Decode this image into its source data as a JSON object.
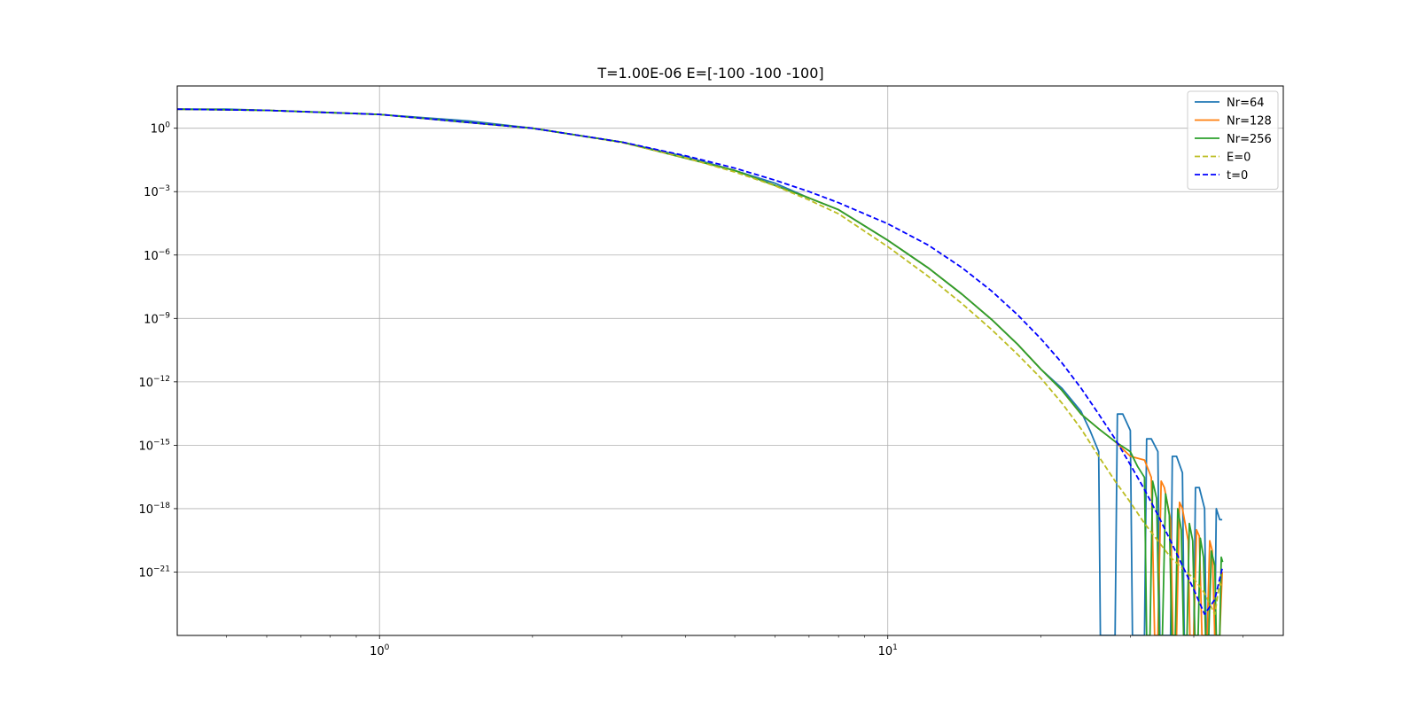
{
  "chart_data": {
    "type": "line",
    "title": "T=1.00E-06 E=[-100 -100 -100]",
    "xlabel": "",
    "ylabel": "",
    "xscale": "log",
    "yscale": "log",
    "xlim": [
      0.4,
      60
    ],
    "ylim": [
      1e-24,
      100.0
    ],
    "grid": true,
    "legend_position": "top-right",
    "x_ticks": [
      {
        "value": 1,
        "base": "10",
        "exp": "0"
      },
      {
        "value": 10,
        "base": "10",
        "exp": "1"
      }
    ],
    "y_ticks": [
      {
        "value": 1,
        "base": "10",
        "exp": "0"
      },
      {
        "value": 0.001,
        "base": "10",
        "exp": "−3"
      },
      {
        "value": 1e-06,
        "base": "10",
        "exp": "−6"
      },
      {
        "value": 1e-09,
        "base": "10",
        "exp": "−9"
      },
      {
        "value": 1e-12,
        "base": "10",
        "exp": "−12"
      },
      {
        "value": 1e-15,
        "base": "10",
        "exp": "−15"
      },
      {
        "value": 1e-18,
        "base": "10",
        "exp": "−18"
      },
      {
        "value": 1e-21,
        "base": "10",
        "exp": "−21"
      }
    ],
    "series": [
      {
        "name": "Nr=64",
        "color": "#1f77b4",
        "dash": false,
        "points": [
          [
            0.4,
            8
          ],
          [
            0.5,
            8
          ],
          [
            0.6,
            7
          ],
          [
            0.8,
            5.5
          ],
          [
            1,
            4.5
          ],
          [
            1.5,
            2.2
          ],
          [
            2,
            1
          ],
          [
            3,
            0.22
          ],
          [
            4,
            0.045
          ],
          [
            5,
            0.01
          ],
          [
            6,
            0.0025
          ],
          [
            7,
            0.0005
          ],
          [
            8,
            0.00014
          ],
          [
            10,
            5e-06
          ],
          [
            12,
            2.5e-07
          ],
          [
            14,
            1.4e-08
          ],
          [
            16,
            9e-10
          ],
          [
            18,
            6e-11
          ],
          [
            20,
            4e-12
          ],
          [
            22,
            5e-13
          ],
          [
            24,
            4e-14
          ],
          [
            25,
            5e-15
          ],
          [
            26,
            5e-16
          ],
          [
            26.2,
            1e-24
          ],
          [
            28,
            1e-24
          ],
          [
            28.3,
            3e-14
          ],
          [
            29,
            3e-14
          ],
          [
            30,
            5e-15
          ],
          [
            30.3,
            1e-24
          ],
          [
            32,
            1e-24
          ],
          [
            32.3,
            2e-15
          ],
          [
            33,
            2e-15
          ],
          [
            34,
            5e-16
          ],
          [
            34.3,
            1e-24
          ],
          [
            36,
            1e-24
          ],
          [
            36.3,
            3e-16
          ],
          [
            37,
            3e-16
          ],
          [
            38,
            5e-17
          ],
          [
            38.3,
            1e-24
          ],
          [
            40,
            1e-24
          ],
          [
            40.3,
            1e-17
          ],
          [
            41,
            1e-17
          ],
          [
            42,
            1e-18
          ],
          [
            42.3,
            1e-24
          ],
          [
            44,
            1e-24
          ],
          [
            44.3,
            1e-18
          ],
          [
            45,
            3e-19
          ],
          [
            45.5,
            3e-19
          ]
        ]
      },
      {
        "name": "Nr=128",
        "color": "#ff7f0e",
        "dash": false,
        "points": [
          [
            0.4,
            8
          ],
          [
            0.6,
            7
          ],
          [
            1,
            4.5
          ],
          [
            2,
            1
          ],
          [
            3,
            0.22
          ],
          [
            5,
            0.01
          ],
          [
            7,
            0.0005
          ],
          [
            8,
            0.00014
          ],
          [
            10,
            5e-06
          ],
          [
            12,
            2.5e-07
          ],
          [
            14,
            1.4e-08
          ],
          [
            16,
            9e-10
          ],
          [
            18,
            6e-11
          ],
          [
            20,
            4e-12
          ],
          [
            22,
            4e-13
          ],
          [
            24,
            3e-14
          ],
          [
            26,
            6e-15
          ],
          [
            28,
            1.5e-15
          ],
          [
            30,
            3e-16
          ],
          [
            32,
            2e-16
          ],
          [
            33,
            3e-17
          ],
          [
            33.5,
            1e-24
          ],
          [
            34,
            1e-24
          ],
          [
            34.5,
            2e-17
          ],
          [
            35,
            1e-17
          ],
          [
            36,
            3e-19
          ],
          [
            36.4,
            1e-24
          ],
          [
            37,
            1e-24
          ],
          [
            37.5,
            2e-18
          ],
          [
            38,
            1e-18
          ],
          [
            39,
            3e-20
          ],
          [
            39.3,
            1e-24
          ],
          [
            40,
            1e-24
          ],
          [
            40.5,
            1e-19
          ],
          [
            41,
            5e-20
          ],
          [
            41.5,
            1e-24
          ],
          [
            42.5,
            1e-24
          ],
          [
            43,
            3e-20
          ],
          [
            43.5,
            1e-20
          ],
          [
            44,
            1e-24
          ],
          [
            45,
            1e-24
          ],
          [
            45.5,
            1e-21
          ]
        ]
      },
      {
        "name": "Nr=256",
        "color": "#2ca02c",
        "dash": false,
        "points": [
          [
            0.4,
            8
          ],
          [
            0.6,
            7
          ],
          [
            1,
            4.5
          ],
          [
            2,
            1
          ],
          [
            3,
            0.22
          ],
          [
            5,
            0.01
          ],
          [
            7,
            0.0005
          ],
          [
            8,
            0.00014
          ],
          [
            10,
            5e-06
          ],
          [
            12,
            2.5e-07
          ],
          [
            14,
            1.4e-08
          ],
          [
            16,
            9e-10
          ],
          [
            18,
            6e-11
          ],
          [
            20,
            4e-12
          ],
          [
            22,
            4e-13
          ],
          [
            24,
            3e-14
          ],
          [
            26,
            6e-15
          ],
          [
            28,
            1.5e-15
          ],
          [
            30,
            5e-16
          ],
          [
            31,
            1e-16
          ],
          [
            32,
            3e-17
          ],
          [
            32.3,
            1e-24
          ],
          [
            32.8,
            1e-24
          ],
          [
            33.2,
            2e-17
          ],
          [
            33.8,
            3e-18
          ],
          [
            34.2,
            1e-24
          ],
          [
            34.7,
            1e-24
          ],
          [
            35.2,
            5e-18
          ],
          [
            35.8,
            5e-19
          ],
          [
            36.2,
            1e-24
          ],
          [
            36.8,
            1e-24
          ],
          [
            37.2,
            1e-18
          ],
          [
            37.8,
            1e-19
          ],
          [
            38.2,
            1e-24
          ],
          [
            38.8,
            1e-24
          ],
          [
            39.2,
            2e-19
          ],
          [
            39.8,
            3e-20
          ],
          [
            40.2,
            1e-24
          ],
          [
            40.8,
            1e-24
          ],
          [
            41.2,
            4e-20
          ],
          [
            41.8,
            5e-21
          ],
          [
            42.2,
            1e-24
          ],
          [
            42.8,
            1e-24
          ],
          [
            43.3,
            1e-20
          ],
          [
            44,
            2e-21
          ],
          [
            44.3,
            1e-24
          ],
          [
            45,
            1e-24
          ],
          [
            45.3,
            5e-21
          ],
          [
            45.6,
            3e-21
          ]
        ]
      },
      {
        "name": "E=0",
        "color": "#bcbd22",
        "dash": true,
        "points": [
          [
            0.4,
            8
          ],
          [
            0.6,
            7
          ],
          [
            1,
            4.5
          ],
          [
            2,
            1
          ],
          [
            3,
            0.21
          ],
          [
            4,
            0.04
          ],
          [
            5,
            0.0085
          ],
          [
            6,
            0.0019
          ],
          [
            7,
            0.0004
          ],
          [
            8,
            9e-05
          ],
          [
            10,
            2.5e-06
          ],
          [
            12,
            1e-07
          ],
          [
            14,
            5e-09
          ],
          [
            16,
            3e-10
          ],
          [
            18,
            2e-11
          ],
          [
            20,
            1.5e-12
          ],
          [
            22,
            1e-13
          ],
          [
            24,
            6e-15
          ],
          [
            26,
            3e-16
          ],
          [
            28,
            2e-17
          ],
          [
            30,
            2e-18
          ],
          [
            32,
            2e-19
          ],
          [
            34,
            3e-20
          ],
          [
            36,
            5e-21
          ],
          [
            38,
            1.5e-21
          ],
          [
            40,
            5e-22
          ],
          [
            42,
            1e-22
          ],
          [
            44,
            1e-23
          ],
          [
            45,
            3e-22
          ],
          [
            45.5,
            2e-22
          ]
        ]
      },
      {
        "name": "t=0",
        "color": "#0000ff",
        "dash": true,
        "points": [
          [
            0.4,
            8
          ],
          [
            0.6,
            7
          ],
          [
            1,
            4.5
          ],
          [
            2,
            1
          ],
          [
            3,
            0.22
          ],
          [
            4,
            0.05
          ],
          [
            5,
            0.013
          ],
          [
            6,
            0.0035
          ],
          [
            7,
            0.001
          ],
          [
            8,
            0.0003
          ],
          [
            10,
            3e-05
          ],
          [
            12,
            3e-06
          ],
          [
            14,
            2.5e-07
          ],
          [
            16,
            2e-08
          ],
          [
            18,
            1.5e-09
          ],
          [
            20,
            1.1e-10
          ],
          [
            22,
            8e-12
          ],
          [
            24,
            5e-13
          ],
          [
            26,
            3e-14
          ],
          [
            28,
            2e-15
          ],
          [
            30,
            1.2e-16
          ],
          [
            32,
            8e-18
          ],
          [
            34,
            5e-19
          ],
          [
            36,
            3e-20
          ],
          [
            38,
            2e-21
          ],
          [
            40,
            1.5e-22
          ],
          [
            42,
            1e-23
          ],
          [
            44,
            5e-23
          ],
          [
            45.5,
            1.5e-21
          ]
        ]
      }
    ]
  }
}
